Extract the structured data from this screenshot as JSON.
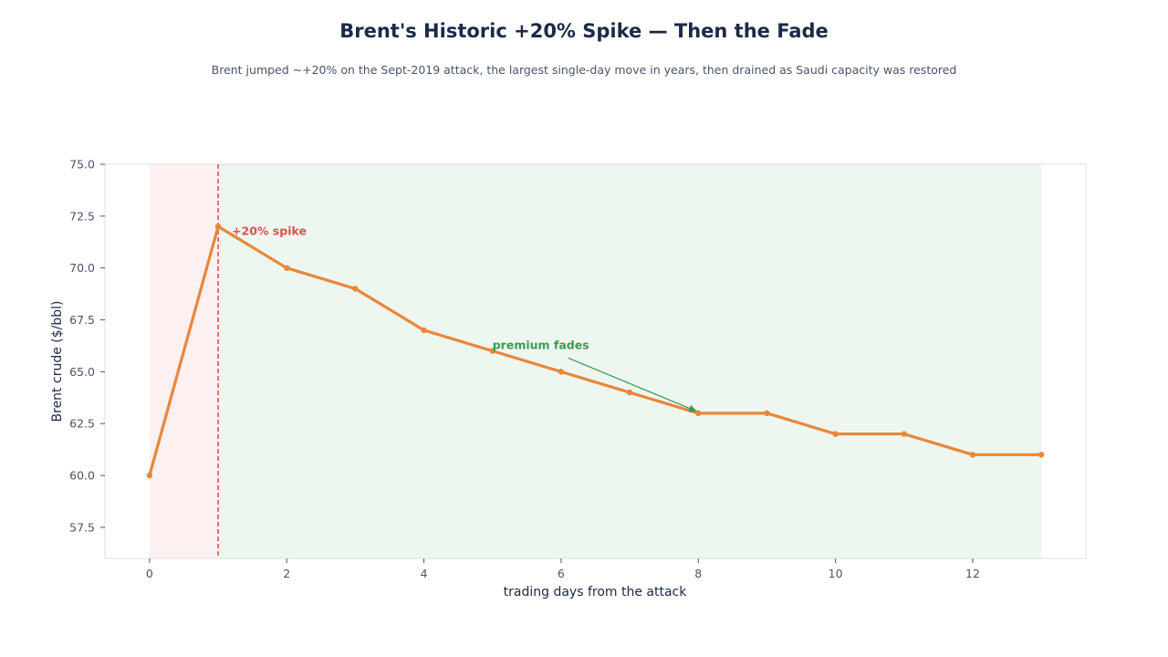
{
  "chart_data": {
    "type": "line",
    "title": "Brent's Historic +20% Spike — Then the Fade",
    "subtitle": "Brent jumped ~+20% on the Sept-2019 attack, the largest single-day move in years, then drained as Saudi capacity was restored",
    "xlabel": "trading days from the attack",
    "ylabel": "Brent crude ($/bbl)",
    "xlim": [
      -0.65,
      13.65
    ],
    "ylim": [
      56.0,
      75.0
    ],
    "x_ticks": [
      0,
      2,
      4,
      6,
      8,
      10,
      12
    ],
    "y_ticks": [
      57.5,
      60.0,
      62.5,
      65.0,
      67.5,
      70.0,
      72.5,
      75.0
    ],
    "y_tick_labels": [
      "57.5",
      "60.0",
      "62.5",
      "65.0",
      "67.5",
      "70.0",
      "72.5",
      "75.0"
    ],
    "grid": false,
    "series": [
      {
        "x": [
          0,
          1,
          2,
          3,
          4,
          5,
          6,
          7,
          8,
          9,
          10,
          11,
          12,
          13
        ],
        "values": [
          60.0,
          72.0,
          70.0,
          69.0,
          67.0,
          66.0,
          65.0,
          64.0,
          63.0,
          63.0,
          62.0,
          62.0,
          61.0,
          61.0
        ],
        "color": "#e8873a"
      }
    ],
    "shaded_regions": [
      {
        "x_range": [
          0,
          1
        ],
        "color": "#fdf0f1"
      },
      {
        "x_range": [
          1,
          13
        ],
        "color": "#eef6f0"
      }
    ],
    "reference_line": {
      "x": 1,
      "color": "#d9534f",
      "style": "dashed"
    },
    "annotations": [
      {
        "text": "+20% spike",
        "x": 1.2,
        "y": 71.6,
        "color": "#d9534f"
      },
      {
        "text": "premium fades",
        "x": 5.0,
        "y": 66.1,
        "color": "#3a9b53",
        "arrow_to": {
          "x": 7.97,
          "y": 63.1
        }
      }
    ]
  }
}
